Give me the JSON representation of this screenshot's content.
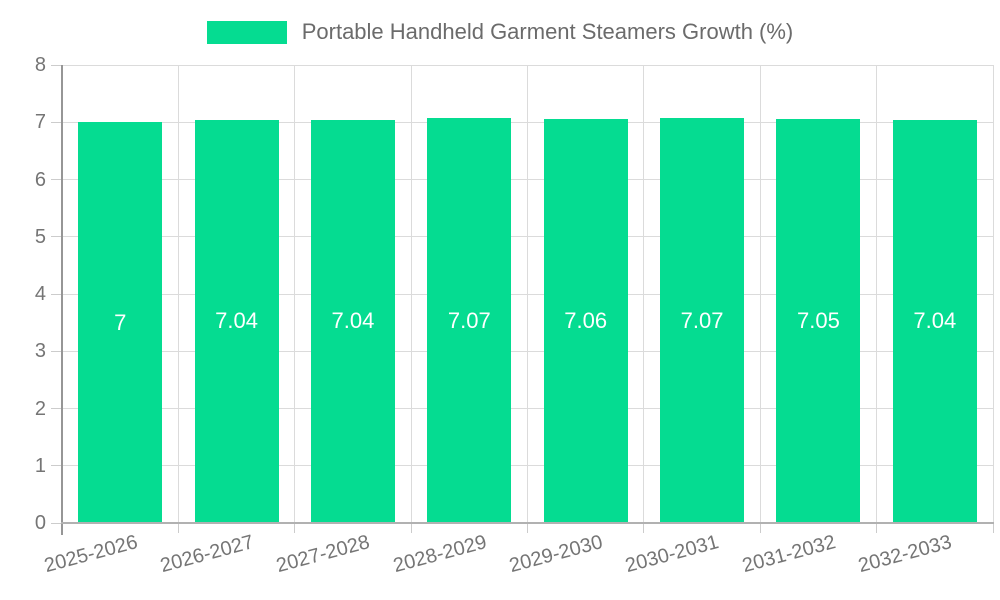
{
  "chart_data": {
    "type": "bar",
    "title": "Portable Handheld Garment Steamers Growth (%)",
    "categories": [
      "2025-2026",
      "2026-2027",
      "2027-2028",
      "2028-2029",
      "2029-2030",
      "2030-2031",
      "2031-2032",
      "2032-2033"
    ],
    "values": [
      7,
      7.04,
      7.04,
      7.07,
      7.06,
      7.07,
      7.05,
      7.04
    ],
    "value_labels": [
      "7",
      "7.04",
      "7.04",
      "7.07",
      "7.06",
      "7.07",
      "7.05",
      "7.04"
    ],
    "xlabel": "",
    "ylabel": "",
    "ylim": [
      0,
      8
    ],
    "yticks": [
      0,
      1,
      2,
      3,
      4,
      5,
      6,
      7,
      8
    ],
    "grid": true,
    "legend_position": "top-center",
    "bar_color": "#05dc91",
    "value_label_color": "#ffffff",
    "axis_text_color": "#757575",
    "legend_text_color": "#6b6b6b"
  },
  "legend": {
    "label": "Portable Handheld Garment Steamers Growth (%)"
  }
}
